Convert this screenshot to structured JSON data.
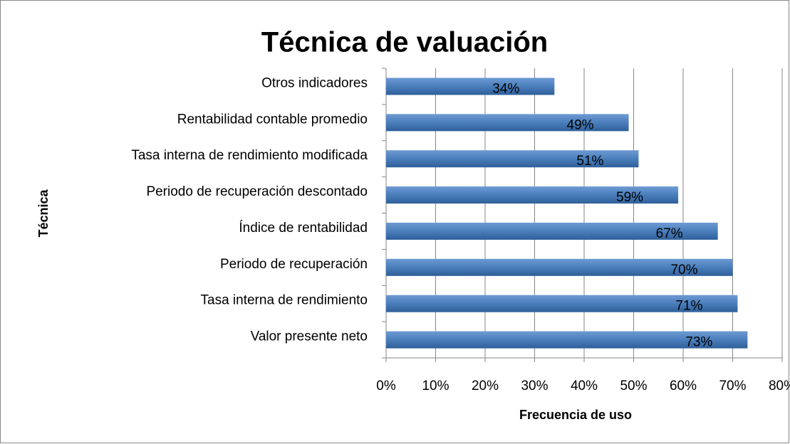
{
  "chart_data": {
    "type": "bar",
    "orientation": "horizontal",
    "title": "Técnica de valuación",
    "x_label": "Frecuencia de uso",
    "y_label": "Técnica",
    "categories": [
      "Valor presente neto",
      "Tasa interna de rendimiento",
      "Periodo de recuperación",
      "Índice de rentabilidad",
      "Periodo de recuperación descontado",
      "Tasa interna de rendimiento modificada",
      "Rentabilidad contable promedio",
      "Otros indicadores"
    ],
    "values": [
      73,
      71,
      70,
      67,
      59,
      51,
      49,
      34
    ],
    "value_labels": [
      "73%",
      "71%",
      "70%",
      "67%",
      "59%",
      "51%",
      "49%",
      "34%"
    ],
    "color": "#4a7ebb",
    "xlim": [
      0,
      80
    ],
    "xticks": [
      {
        "value": 0,
        "label": "0%"
      },
      {
        "value": 10,
        "label": "10%"
      },
      {
        "value": 20,
        "label": "20%"
      },
      {
        "value": 30,
        "label": "30%"
      },
      {
        "value": 40,
        "label": "40%"
      },
      {
        "value": 50,
        "label": "50%"
      },
      {
        "value": 60,
        "label": "60%"
      },
      {
        "value": 70,
        "label": "70%"
      },
      {
        "value": 80,
        "label": "80%"
      }
    ],
    "grid": true
  }
}
